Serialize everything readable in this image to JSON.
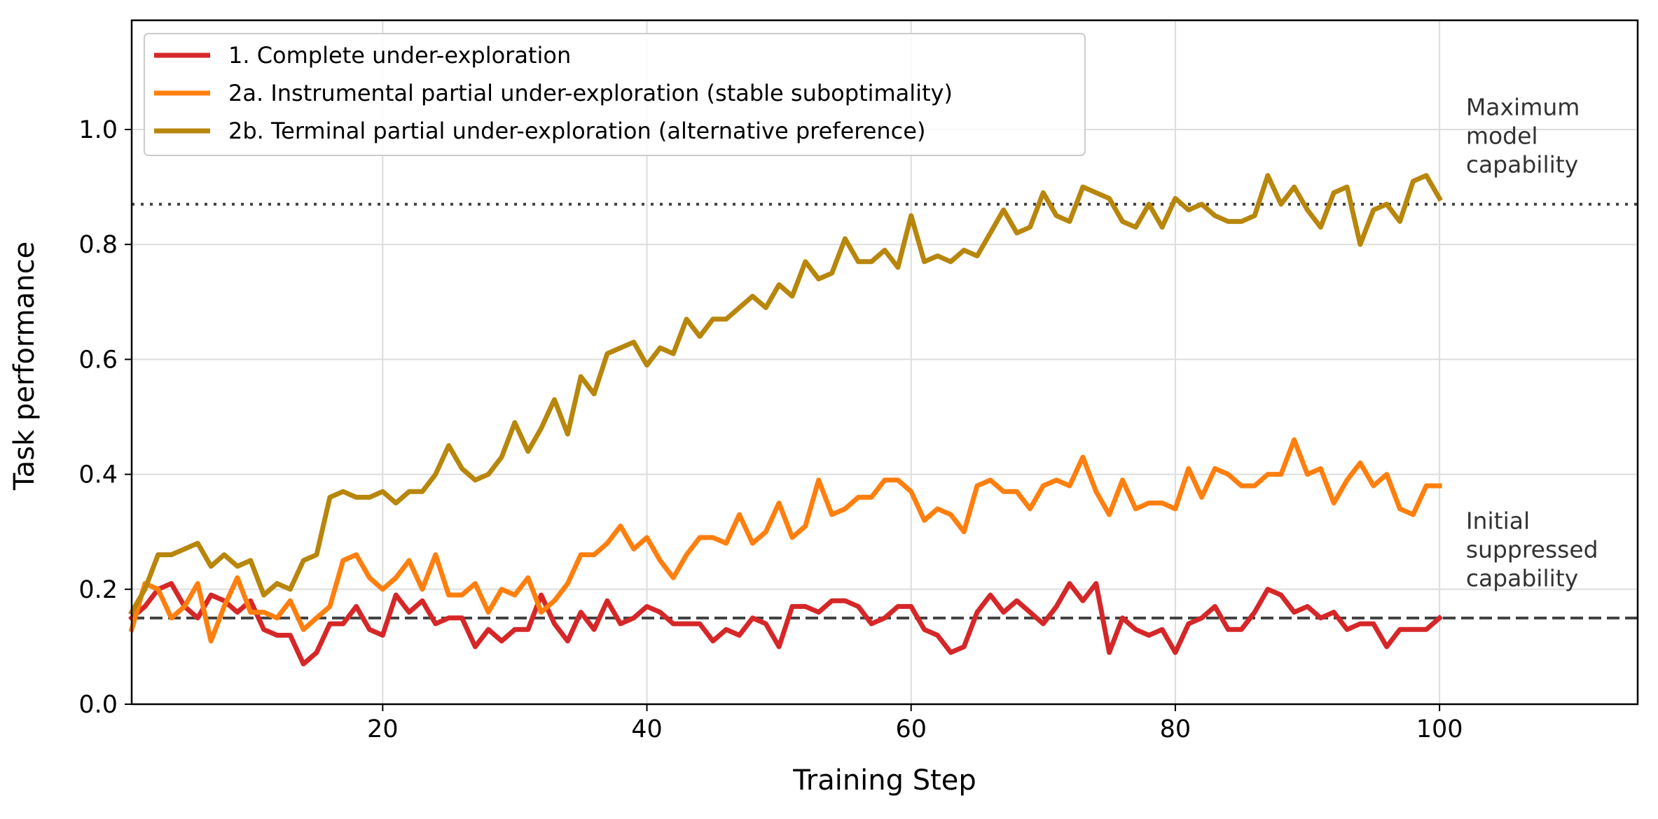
{
  "chart_data": {
    "type": "line",
    "xlabel": "Training Step",
    "ylabel": "Task performance",
    "xlim": [
      1,
      115
    ],
    "ylim": [
      0.0,
      1.19
    ],
    "x_ticks": [
      20,
      40,
      60,
      80,
      100
    ],
    "x_tick_labels": [
      "20",
      "40",
      "60",
      "80",
      "100"
    ],
    "y_ticks": [
      0.0,
      0.2,
      0.4,
      0.6,
      0.8,
      1.0
    ],
    "y_tick_labels": [
      "0.0",
      "0.2",
      "0.4",
      "0.6",
      "0.8",
      "1.0"
    ],
    "grid": true,
    "legend_position": "top-left",
    "reference_lines": [
      {
        "name": "max-capability-line",
        "y": 0.87,
        "style": "dotted",
        "color": "#404040"
      },
      {
        "name": "initial-capability-line",
        "y": 0.15,
        "style": "dashed",
        "color": "#404040"
      }
    ],
    "annotations": [
      {
        "name": "max-capability-annotation",
        "lines": [
          "Maximum",
          "model",
          "capability"
        ],
        "x": 102,
        "y": 1.025
      },
      {
        "name": "initial-capability-annotation",
        "lines": [
          "Initial",
          "suppressed",
          "capability"
        ],
        "x": 102,
        "y": 0.305
      }
    ],
    "x": [
      1,
      2,
      3,
      4,
      5,
      6,
      7,
      8,
      9,
      10,
      11,
      12,
      13,
      14,
      15,
      16,
      17,
      18,
      19,
      20,
      21,
      22,
      23,
      24,
      25,
      26,
      27,
      28,
      29,
      30,
      31,
      32,
      33,
      34,
      35,
      36,
      37,
      38,
      39,
      40,
      41,
      42,
      43,
      44,
      45,
      46,
      47,
      48,
      49,
      50,
      51,
      52,
      53,
      54,
      55,
      56,
      57,
      58,
      59,
      60,
      61,
      62,
      63,
      64,
      65,
      66,
      67,
      68,
      69,
      70,
      71,
      72,
      73,
      74,
      75,
      76,
      77,
      78,
      79,
      80,
      81,
      82,
      83,
      84,
      85,
      86,
      87,
      88,
      89,
      90,
      91,
      92,
      93,
      94,
      95,
      96,
      97,
      98,
      99,
      100
    ],
    "series": [
      {
        "name": "1. Complete under-exploration",
        "color": "#d62728",
        "values": [
          0.15,
          0.17,
          0.2,
          0.21,
          0.17,
          0.15,
          0.19,
          0.18,
          0.16,
          0.18,
          0.13,
          0.12,
          0.12,
          0.07,
          0.09,
          0.14,
          0.14,
          0.17,
          0.13,
          0.12,
          0.19,
          0.16,
          0.18,
          0.14,
          0.15,
          0.15,
          0.1,
          0.13,
          0.11,
          0.13,
          0.13,
          0.19,
          0.14,
          0.11,
          0.16,
          0.13,
          0.18,
          0.14,
          0.15,
          0.17,
          0.16,
          0.14,
          0.14,
          0.14,
          0.11,
          0.13,
          0.12,
          0.15,
          0.14,
          0.1,
          0.17,
          0.17,
          0.16,
          0.18,
          0.18,
          0.17,
          0.14,
          0.15,
          0.17,
          0.17,
          0.13,
          0.12,
          0.09,
          0.1,
          0.16,
          0.19,
          0.16,
          0.18,
          0.16,
          0.14,
          0.17,
          0.21,
          0.18,
          0.21,
          0.09,
          0.15,
          0.13,
          0.12,
          0.13,
          0.09,
          0.14,
          0.15,
          0.17,
          0.13,
          0.13,
          0.16,
          0.2,
          0.19,
          0.16,
          0.17,
          0.15,
          0.16,
          0.13,
          0.14,
          0.14,
          0.1,
          0.13,
          0.13,
          0.13,
          0.15
        ]
      },
      {
        "name": "2a. Instrumental partial under-exploration (stable suboptimality)",
        "color": "#ff7f0e",
        "values": [
          0.13,
          0.21,
          0.2,
          0.15,
          0.17,
          0.21,
          0.11,
          0.17,
          0.22,
          0.16,
          0.16,
          0.15,
          0.18,
          0.13,
          0.15,
          0.17,
          0.25,
          0.26,
          0.22,
          0.2,
          0.22,
          0.25,
          0.2,
          0.26,
          0.19,
          0.19,
          0.21,
          0.16,
          0.2,
          0.19,
          0.22,
          0.16,
          0.18,
          0.21,
          0.26,
          0.26,
          0.28,
          0.31,
          0.27,
          0.29,
          0.25,
          0.22,
          0.26,
          0.29,
          0.29,
          0.28,
          0.33,
          0.28,
          0.3,
          0.35,
          0.29,
          0.31,
          0.39,
          0.33,
          0.34,
          0.36,
          0.36,
          0.39,
          0.39,
          0.37,
          0.32,
          0.34,
          0.33,
          0.3,
          0.38,
          0.39,
          0.37,
          0.37,
          0.34,
          0.38,
          0.39,
          0.38,
          0.43,
          0.37,
          0.33,
          0.39,
          0.34,
          0.35,
          0.35,
          0.34,
          0.41,
          0.36,
          0.41,
          0.4,
          0.38,
          0.38,
          0.4,
          0.4,
          0.46,
          0.4,
          0.41,
          0.35,
          0.39,
          0.42,
          0.38,
          0.4,
          0.34,
          0.33,
          0.38,
          0.38
        ]
      },
      {
        "name": "2b. Terminal partial under-exploration (alternative preference)",
        "color": "#b8860b",
        "values": [
          0.16,
          0.2,
          0.26,
          0.26,
          0.27,
          0.28,
          0.24,
          0.26,
          0.24,
          0.25,
          0.19,
          0.21,
          0.2,
          0.25,
          0.26,
          0.36,
          0.37,
          0.36,
          0.36,
          0.37,
          0.35,
          0.37,
          0.37,
          0.4,
          0.45,
          0.41,
          0.39,
          0.4,
          0.43,
          0.49,
          0.44,
          0.48,
          0.53,
          0.47,
          0.57,
          0.54,
          0.61,
          0.62,
          0.63,
          0.59,
          0.62,
          0.61,
          0.67,
          0.64,
          0.67,
          0.67,
          0.69,
          0.71,
          0.69,
          0.73,
          0.71,
          0.77,
          0.74,
          0.75,
          0.81,
          0.77,
          0.77,
          0.79,
          0.76,
          0.85,
          0.77,
          0.78,
          0.77,
          0.79,
          0.78,
          0.82,
          0.86,
          0.82,
          0.83,
          0.89,
          0.85,
          0.84,
          0.9,
          0.89,
          0.88,
          0.84,
          0.83,
          0.87,
          0.83,
          0.88,
          0.86,
          0.87,
          0.85,
          0.84,
          0.84,
          0.85,
          0.92,
          0.87,
          0.9,
          0.86,
          0.83,
          0.89,
          0.9,
          0.8,
          0.86,
          0.87,
          0.84,
          0.91,
          0.92,
          0.88
        ]
      }
    ]
  }
}
